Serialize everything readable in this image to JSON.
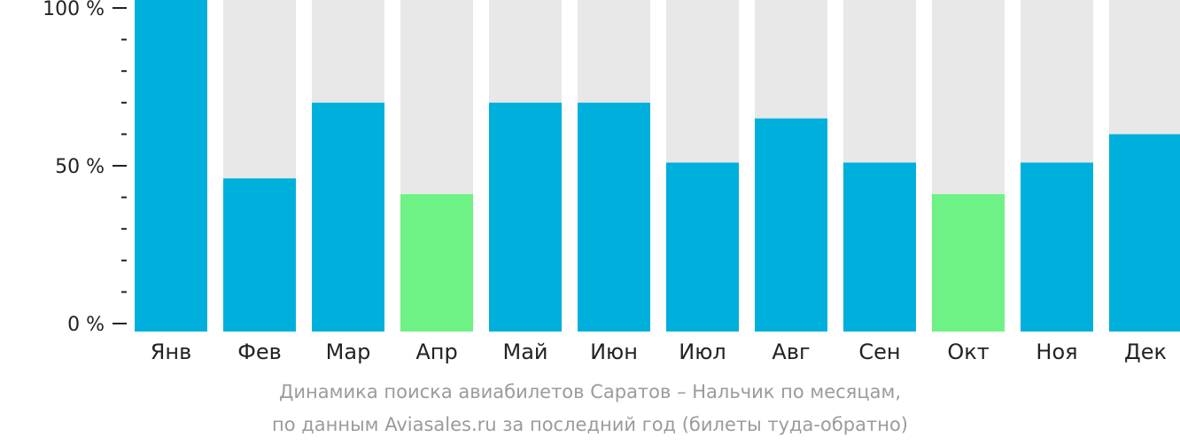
{
  "chart_data": {
    "type": "bar",
    "categories": [
      "Янв",
      "Фев",
      "Мар",
      "Апр",
      "Май",
      "Июн",
      "Июл",
      "Авг",
      "Сен",
      "Окт",
      "Ноя",
      "Дек"
    ],
    "values": [
      100,
      46,
      70,
      41,
      70,
      70,
      51,
      65,
      51,
      41,
      51,
      60
    ],
    "highlight": [
      false,
      false,
      false,
      true,
      false,
      false,
      false,
      false,
      false,
      true,
      false,
      false
    ],
    "ylim": [
      0,
      100
    ],
    "y_ticks": [
      {
        "value": 0,
        "label": "0 %"
      },
      {
        "value": 50,
        "label": "50 %"
      },
      {
        "value": 100,
        "label": "100 %"
      }
    ],
    "y_minor_step": 10,
    "title": "",
    "xlabel": "",
    "ylabel": "",
    "grid": false,
    "legend": "none",
    "colors": {
      "bar": "#00b0dc",
      "highlight": "#6ef285",
      "background_bar": "#e8e8e8",
      "axis": "#232323"
    }
  },
  "caption": {
    "line1": "Динамика поиска авиабилетов Саратов – Нальчик по месяцам,",
    "line2": "по данным Aviasales.ru за последний год (билеты туда-обратно)"
  }
}
